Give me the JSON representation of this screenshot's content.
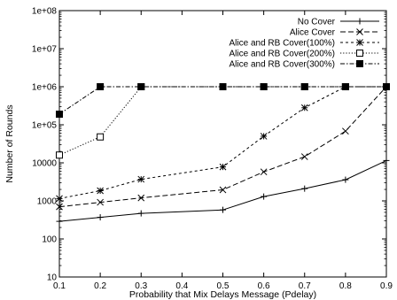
{
  "chart_data": {
    "type": "line",
    "title": "",
    "xlabel": "Probability that Mix Delays Message (Pdelay)",
    "ylabel": "Number of Rounds",
    "xlim": [
      0.1,
      0.9
    ],
    "ylim": [
      10,
      100000000
    ],
    "y_scale": "log",
    "grid": false,
    "legend_position": "top-right",
    "x_ticks": [
      0.1,
      0.2,
      0.3,
      0.4,
      0.5,
      0.6,
      0.7,
      0.8,
      0.9
    ],
    "x_tick_labels": [
      "0.1",
      "0.2",
      "0.3",
      "0.4",
      "0.5",
      "0.6",
      "0.7",
      "0.8",
      "0.9"
    ],
    "y_ticks": [
      10,
      100,
      1000,
      10000,
      100000,
      1000000,
      10000000,
      100000000
    ],
    "y_tick_labels": [
      "10",
      "100",
      "1000",
      "10000",
      "1e+05",
      "1e+06",
      "1e+07",
      "1e+08"
    ],
    "series": [
      {
        "name": "No Cover",
        "marker": "plus",
        "dash": "solid",
        "x": [
          0.1,
          0.2,
          0.3,
          0.5,
          0.6,
          0.7,
          0.8,
          0.9
        ],
        "y": [
          290,
          370,
          470,
          580,
          1300,
          2100,
          3600,
          11500
        ]
      },
      {
        "name": "Alice Cover",
        "marker": "cross",
        "dash": "dashed",
        "x": [
          0.1,
          0.2,
          0.3,
          0.5,
          0.6,
          0.7,
          0.8,
          0.9
        ],
        "y": [
          700,
          920,
          1200,
          1950,
          5800,
          14500,
          68000,
          1000000
        ]
      },
      {
        "name": "Alice and RB Cover(100%)",
        "marker": "star",
        "dash": "short-dash",
        "x": [
          0.1,
          0.2,
          0.3,
          0.5,
          0.6,
          0.7,
          0.8,
          0.9
        ],
        "y": [
          1150,
          1850,
          3700,
          7800,
          50000,
          280000,
          1000000,
          1000000
        ]
      },
      {
        "name": "Alice and RB Cover(200%)",
        "marker": "open-square",
        "dash": "dotted",
        "x": [
          0.1,
          0.2,
          0.3,
          0.5,
          0.6,
          0.7,
          0.8,
          0.9
        ],
        "y": [
          16000,
          48000,
          1000000,
          1000000,
          1000000,
          1000000,
          1000000,
          1000000
        ]
      },
      {
        "name": "Alice and RB Cover(300%)",
        "marker": "filled-square",
        "dash": "dash-dot",
        "x": [
          0.1,
          0.2,
          0.3,
          0.5,
          0.6,
          0.7,
          0.8,
          0.9
        ],
        "y": [
          190000,
          1000000,
          1000000,
          1000000,
          1000000,
          1000000,
          1000000,
          1000000
        ]
      }
    ]
  }
}
